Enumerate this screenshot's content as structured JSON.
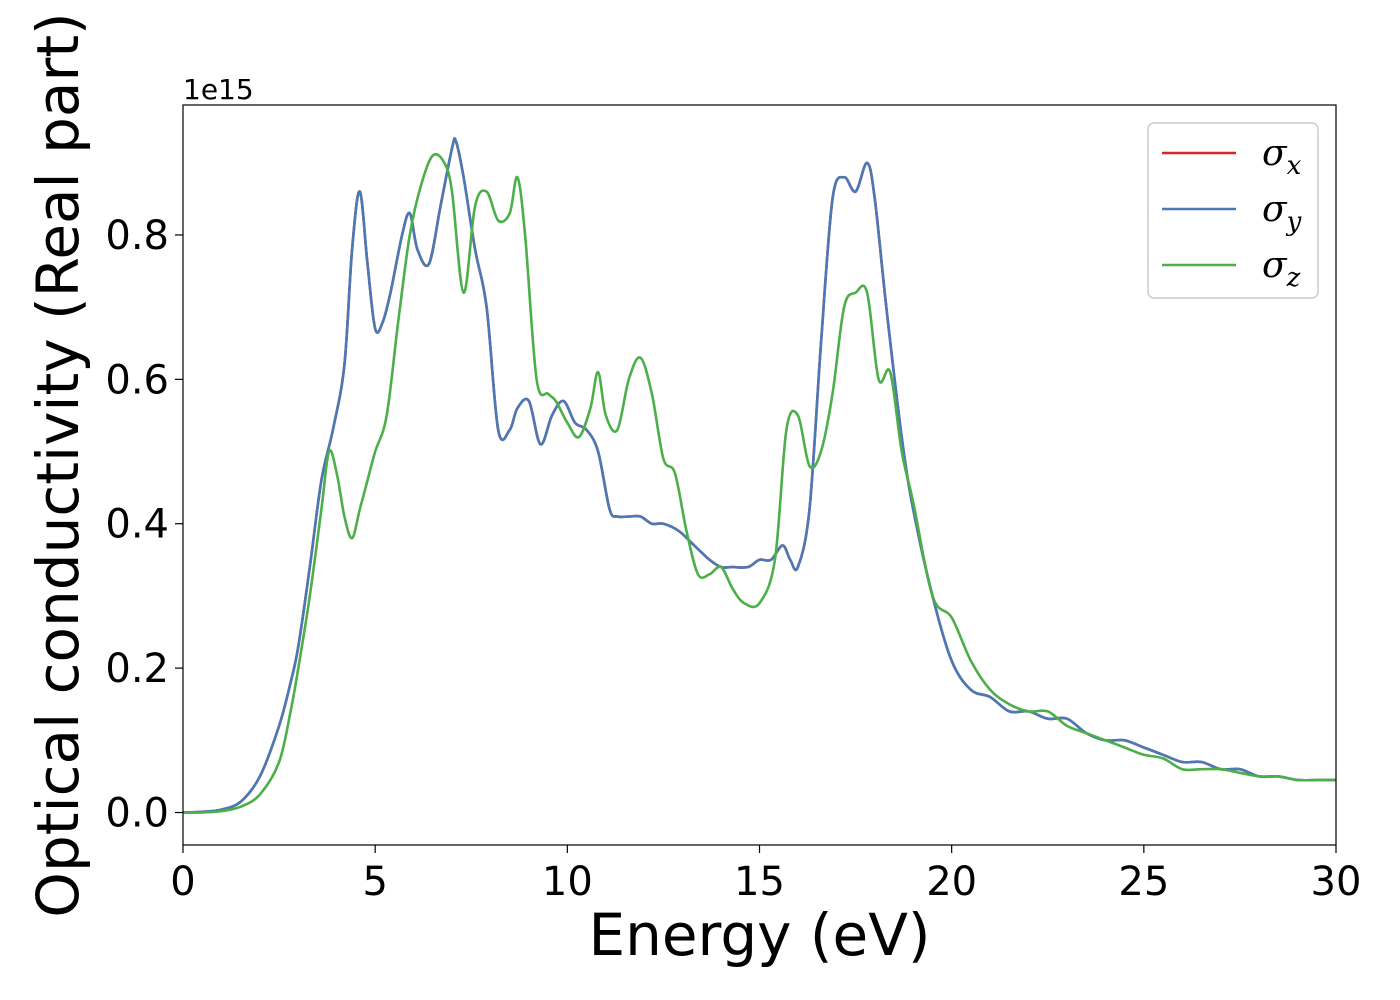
{
  "chart_data": {
    "type": "line",
    "xlabel": "Energy (eV)",
    "ylabel": "Optical conductivity (Real part)",
    "y_offset_label": "1e15",
    "xlim": [
      0,
      30
    ],
    "ylim": [
      -0.045,
      0.98
    ],
    "x_ticks": [
      0,
      5,
      10,
      15,
      20,
      25,
      30
    ],
    "x_tick_labels": [
      "0",
      "5",
      "10",
      "15",
      "20",
      "25",
      "30"
    ],
    "y_ticks": [
      0.0,
      0.2,
      0.4,
      0.6,
      0.8
    ],
    "y_tick_labels": [
      "0.0",
      "0.2",
      "0.4",
      "0.6",
      "0.8"
    ],
    "grid": false,
    "legend_position": "top-right",
    "series": [
      {
        "name": "σ_x",
        "legend_base": "σ",
        "legend_sub": "x",
        "color": "#d62728",
        "x": [
          0,
          0.5,
          1,
          1.5,
          2,
          2.5,
          2.8,
          3,
          3.3,
          3.6,
          3.9,
          4.2,
          4.4,
          4.6,
          4.8,
          5,
          5.2,
          5.4,
          5.7,
          5.9,
          6.1,
          6.4,
          6.7,
          7,
          7.1,
          7.3,
          7.6,
          7.9,
          8.2,
          8.5,
          8.7,
          9,
          9.3,
          9.6,
          9.9,
          10.2,
          10.5,
          10.8,
          11.1,
          11.3,
          11.6,
          11.9,
          12.2,
          12.5,
          12.9,
          13.3,
          13.7,
          14,
          14.3,
          14.7,
          15,
          15.3,
          15.6,
          15.8,
          16,
          16.3,
          16.6,
          16.9,
          17.2,
          17.5,
          17.8,
          18,
          18.3,
          18.7,
          19,
          19.5,
          20,
          20.5,
          21,
          21.5,
          22,
          22.5,
          23,
          23.5,
          24,
          24.5,
          25,
          25.5,
          26,
          26.5,
          27,
          27.5,
          28,
          28.5,
          29,
          29.5,
          30
        ],
        "y": [
          0,
          0.001,
          0.004,
          0.015,
          0.05,
          0.12,
          0.18,
          0.23,
          0.34,
          0.46,
          0.53,
          0.62,
          0.78,
          0.86,
          0.76,
          0.67,
          0.68,
          0.72,
          0.8,
          0.83,
          0.78,
          0.76,
          0.84,
          0.92,
          0.93,
          0.88,
          0.78,
          0.7,
          0.53,
          0.53,
          0.56,
          0.57,
          0.51,
          0.55,
          0.57,
          0.54,
          0.53,
          0.5,
          0.42,
          0.41,
          0.41,
          0.41,
          0.4,
          0.4,
          0.39,
          0.37,
          0.35,
          0.34,
          0.34,
          0.34,
          0.35,
          0.35,
          0.37,
          0.35,
          0.34,
          0.42,
          0.65,
          0.85,
          0.88,
          0.86,
          0.9,
          0.85,
          0.7,
          0.52,
          0.42,
          0.3,
          0.21,
          0.17,
          0.16,
          0.14,
          0.14,
          0.13,
          0.13,
          0.11,
          0.1,
          0.1,
          0.09,
          0.08,
          0.07,
          0.07,
          0.06,
          0.06,
          0.05,
          0.05,
          0.045,
          0.045,
          0.045
        ]
      },
      {
        "name": "σ_y",
        "legend_base": "σ",
        "legend_sub": "y",
        "color": "#4a7ab5",
        "x": [
          0,
          0.5,
          1,
          1.5,
          2,
          2.5,
          2.8,
          3,
          3.3,
          3.6,
          3.9,
          4.2,
          4.4,
          4.6,
          4.8,
          5,
          5.2,
          5.4,
          5.7,
          5.9,
          6.1,
          6.4,
          6.7,
          7,
          7.1,
          7.3,
          7.6,
          7.9,
          8.2,
          8.5,
          8.7,
          9,
          9.3,
          9.6,
          9.9,
          10.2,
          10.5,
          10.8,
          11.1,
          11.3,
          11.6,
          11.9,
          12.2,
          12.5,
          12.9,
          13.3,
          13.7,
          14,
          14.3,
          14.7,
          15,
          15.3,
          15.6,
          15.8,
          16,
          16.3,
          16.6,
          16.9,
          17.2,
          17.5,
          17.8,
          18,
          18.3,
          18.7,
          19,
          19.5,
          20,
          20.5,
          21,
          21.5,
          22,
          22.5,
          23,
          23.5,
          24,
          24.5,
          25,
          25.5,
          26,
          26.5,
          27,
          27.5,
          28,
          28.5,
          29,
          29.5,
          30
        ],
        "y": [
          0,
          0.001,
          0.004,
          0.015,
          0.05,
          0.12,
          0.18,
          0.23,
          0.34,
          0.46,
          0.53,
          0.62,
          0.78,
          0.86,
          0.76,
          0.67,
          0.68,
          0.72,
          0.8,
          0.83,
          0.78,
          0.76,
          0.84,
          0.92,
          0.93,
          0.88,
          0.78,
          0.7,
          0.53,
          0.53,
          0.56,
          0.57,
          0.51,
          0.55,
          0.57,
          0.54,
          0.53,
          0.5,
          0.42,
          0.41,
          0.41,
          0.41,
          0.4,
          0.4,
          0.39,
          0.37,
          0.35,
          0.34,
          0.34,
          0.34,
          0.35,
          0.35,
          0.37,
          0.35,
          0.34,
          0.42,
          0.65,
          0.85,
          0.88,
          0.86,
          0.9,
          0.85,
          0.7,
          0.52,
          0.42,
          0.3,
          0.21,
          0.17,
          0.16,
          0.14,
          0.14,
          0.13,
          0.13,
          0.11,
          0.1,
          0.1,
          0.09,
          0.08,
          0.07,
          0.07,
          0.06,
          0.06,
          0.05,
          0.05,
          0.045,
          0.045,
          0.045
        ]
      },
      {
        "name": "σ_z",
        "legend_base": "σ",
        "legend_sub": "z",
        "color": "#4daf4a",
        "x": [
          0,
          0.5,
          1,
          1.5,
          2,
          2.5,
          2.8,
          3,
          3.3,
          3.6,
          3.8,
          4,
          4.2,
          4.4,
          4.6,
          4.8,
          5,
          5.3,
          5.6,
          5.9,
          6.2,
          6.5,
          6.8,
          7,
          7.3,
          7.6,
          7.9,
          8.2,
          8.5,
          8.7,
          8.9,
          9.2,
          9.5,
          9.7,
          10,
          10.3,
          10.6,
          10.8,
          11,
          11.3,
          11.6,
          11.9,
          12.2,
          12.5,
          12.8,
          13.1,
          13.4,
          13.7,
          14,
          14.3,
          14.6,
          15,
          15.4,
          15.7,
          16,
          16.3,
          16.6,
          16.9,
          17.2,
          17.5,
          17.8,
          18.1,
          18.4,
          18.7,
          19,
          19.5,
          20,
          20.5,
          21,
          21.5,
          22,
          22.5,
          23,
          23.5,
          24,
          24.5,
          25,
          25.5,
          26,
          26.5,
          27,
          27.5,
          28,
          28.5,
          29,
          29.5,
          30
        ],
        "y": [
          0,
          0,
          0.002,
          0.008,
          0.025,
          0.07,
          0.14,
          0.2,
          0.3,
          0.42,
          0.5,
          0.47,
          0.41,
          0.38,
          0.42,
          0.46,
          0.5,
          0.55,
          0.68,
          0.8,
          0.87,
          0.91,
          0.9,
          0.86,
          0.72,
          0.84,
          0.86,
          0.82,
          0.83,
          0.88,
          0.8,
          0.6,
          0.58,
          0.57,
          0.54,
          0.52,
          0.56,
          0.61,
          0.55,
          0.53,
          0.6,
          0.63,
          0.58,
          0.49,
          0.47,
          0.39,
          0.33,
          0.33,
          0.34,
          0.31,
          0.29,
          0.29,
          0.35,
          0.53,
          0.55,
          0.48,
          0.5,
          0.58,
          0.7,
          0.72,
          0.72,
          0.6,
          0.61,
          0.5,
          0.43,
          0.3,
          0.27,
          0.21,
          0.17,
          0.15,
          0.14,
          0.14,
          0.12,
          0.11,
          0.1,
          0.09,
          0.08,
          0.075,
          0.06,
          0.06,
          0.06,
          0.055,
          0.05,
          0.05,
          0.045,
          0.045,
          0.045
        ]
      }
    ]
  }
}
